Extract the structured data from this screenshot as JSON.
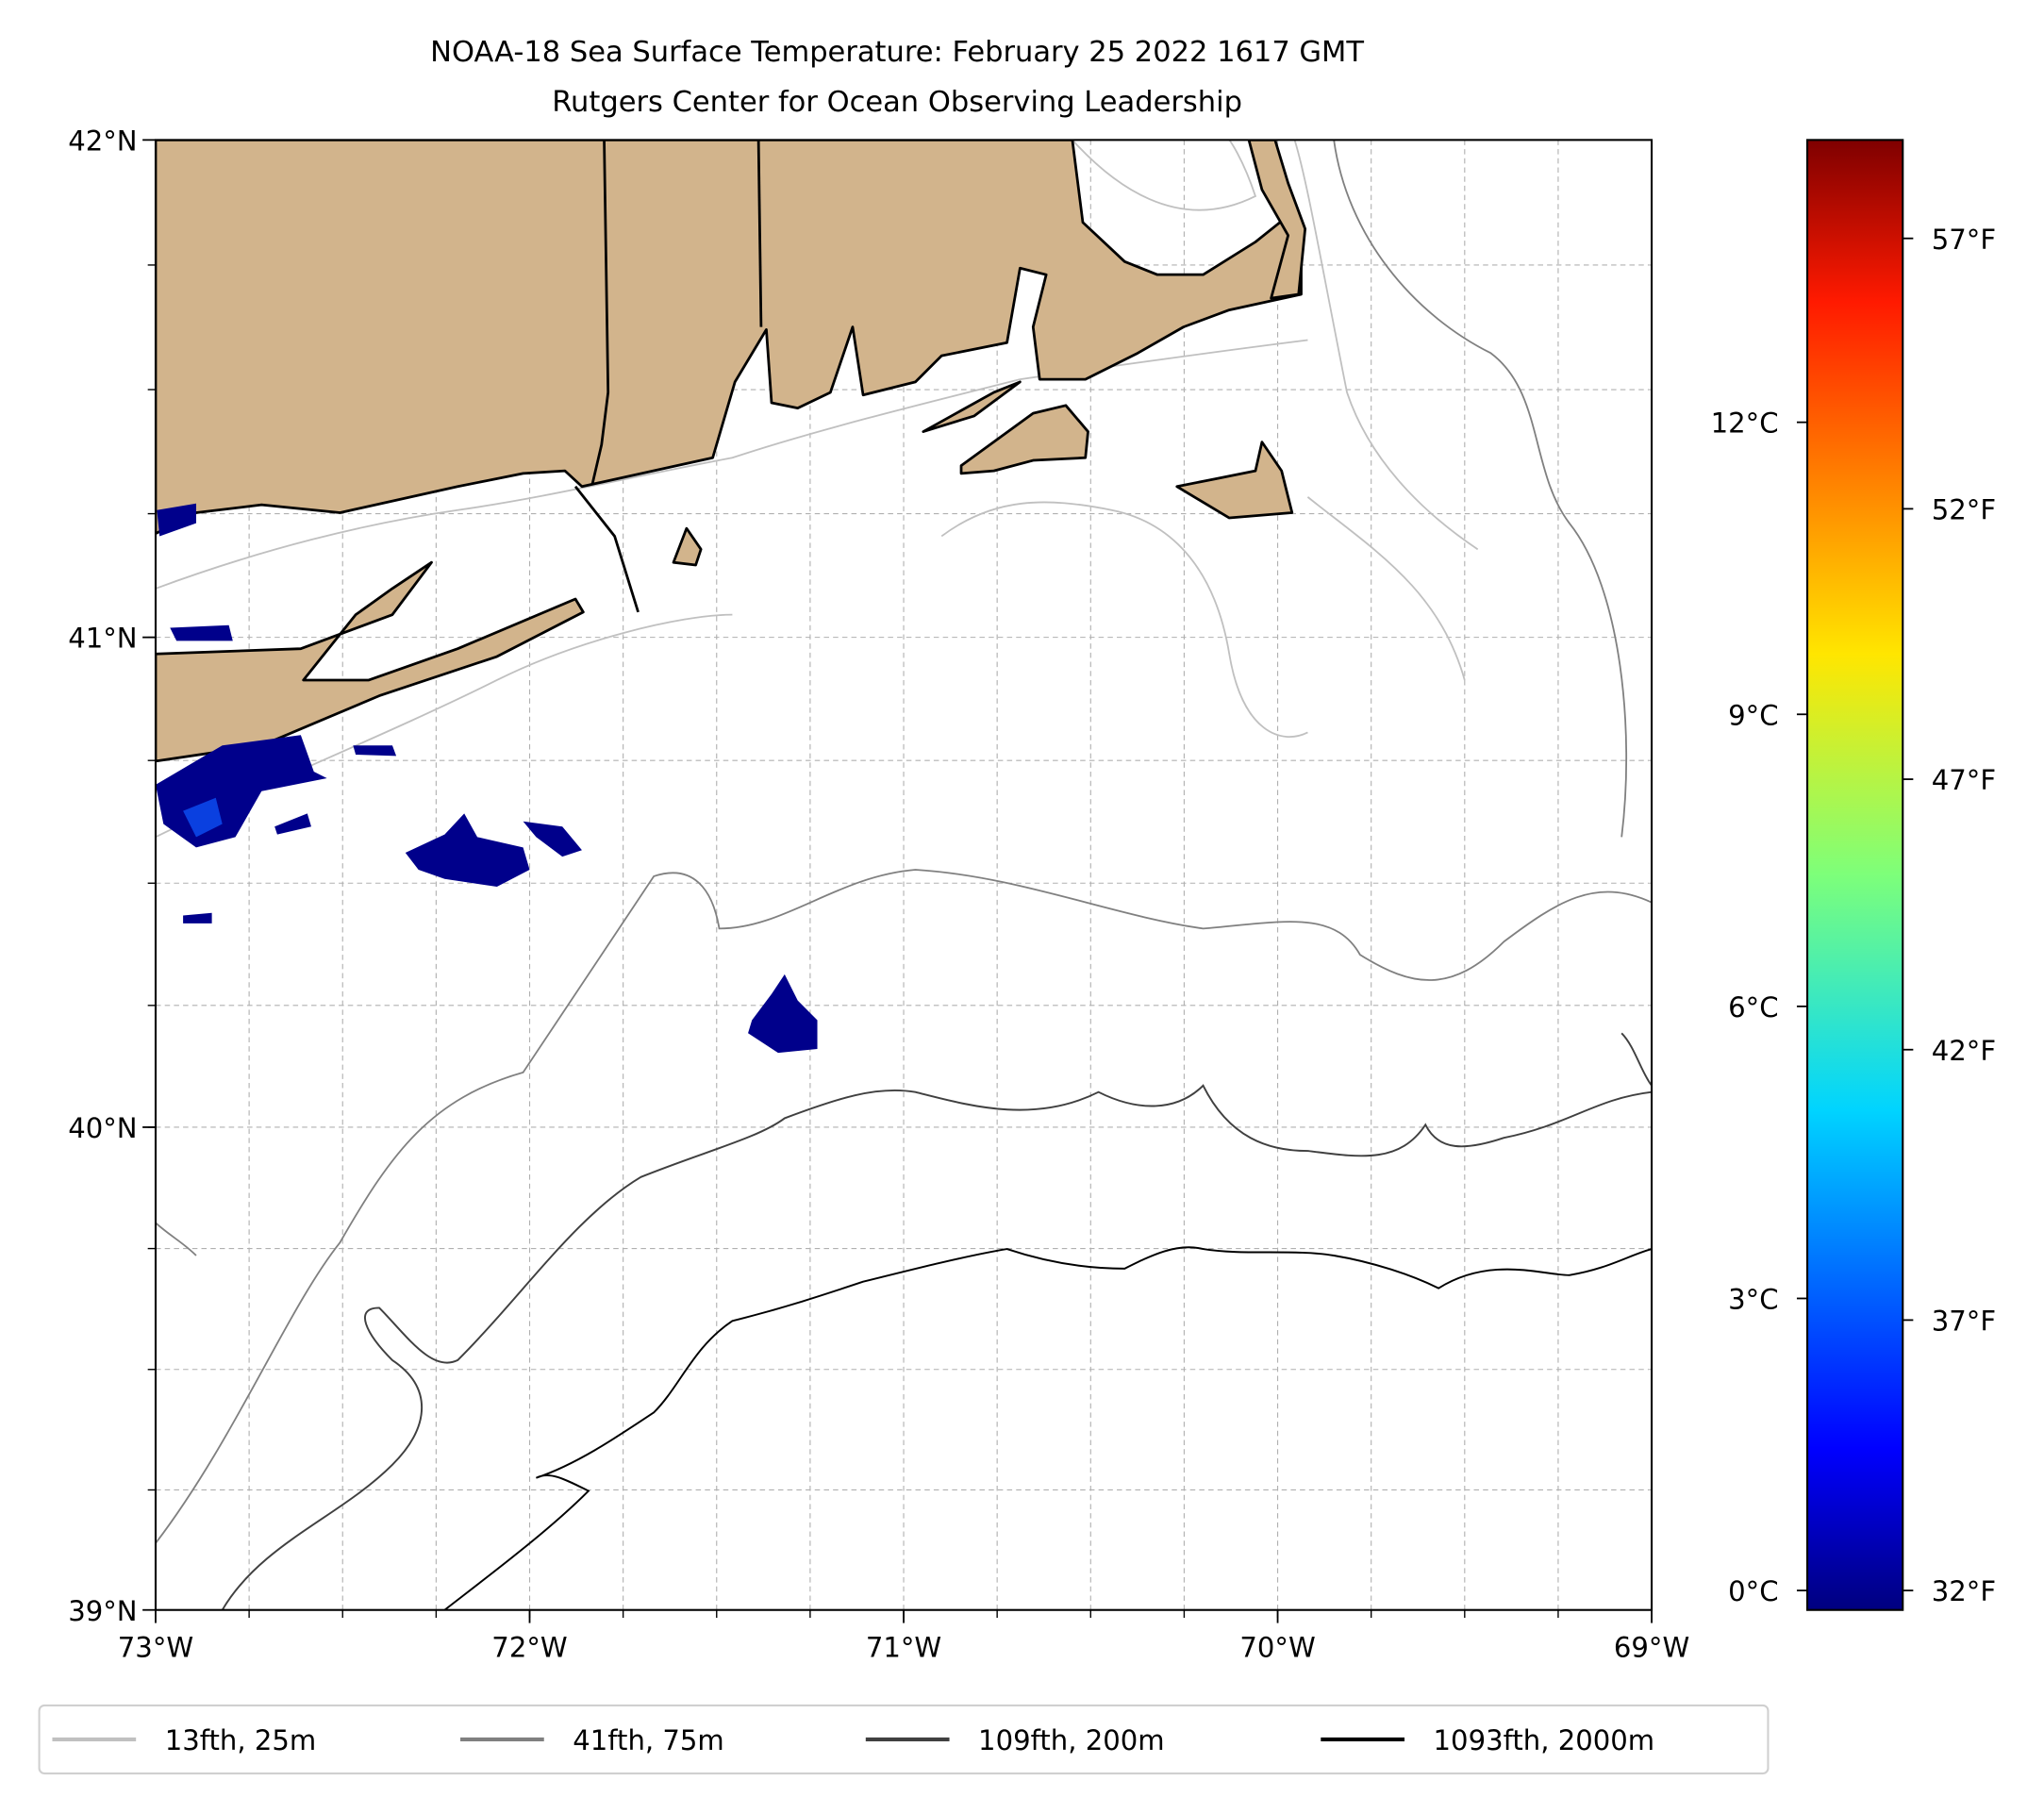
{
  "title": {
    "line1": "NOAA-18 Sea Surface Temperature: February 25 2022 1617 GMT",
    "line2": "Rutgers Center for Ocean Observing Leadership"
  },
  "map": {
    "lon_range": [
      -73,
      -69
    ],
    "lat_range": [
      39,
      42
    ],
    "x_ticks": [
      {
        "value": -73,
        "label": "73°W"
      },
      {
        "value": -72,
        "label": "72°W"
      },
      {
        "value": -71,
        "label": "71°W"
      },
      {
        "value": -70,
        "label": "70°W"
      },
      {
        "value": -69,
        "label": "69°W"
      }
    ],
    "y_ticks": [
      {
        "value": 42,
        "label": "42°N"
      },
      {
        "value": 41,
        "label": "41°N"
      },
      {
        "value": 40,
        "label": "40°N"
      },
      {
        "value": 39,
        "label": "39°N"
      }
    ],
    "minor_grid_step_deg": 0.25,
    "land_color": "#d2b48c",
    "sst_color": "#00008b"
  },
  "colorbar": {
    "colormap": "jet",
    "range_c": [
      -0.2,
      14.9
    ],
    "celsius_ticks": [
      {
        "value": 0,
        "label": "0°C"
      },
      {
        "value": 3,
        "label": "3°C"
      },
      {
        "value": 6,
        "label": "6°C"
      },
      {
        "value": 9,
        "label": "9°C"
      },
      {
        "value": 12,
        "label": "12°C"
      }
    ],
    "fahrenheit_ticks": [
      {
        "value": 32,
        "label": "32°F"
      },
      {
        "value": 37,
        "label": "37°F"
      },
      {
        "value": 42,
        "label": "42°F"
      },
      {
        "value": 47,
        "label": "47°F"
      },
      {
        "value": 52,
        "label": "52°F"
      },
      {
        "value": 57,
        "label": "57°F"
      }
    ]
  },
  "legend": {
    "items": [
      {
        "label": "13fth, 25m",
        "color": "#c0c0c0"
      },
      {
        "label": "41fth, 75m",
        "color": "#808080"
      },
      {
        "label": "109fth, 200m",
        "color": "#404040"
      },
      {
        "label": "1093fth, 2000m",
        "color": "#000000"
      }
    ]
  }
}
